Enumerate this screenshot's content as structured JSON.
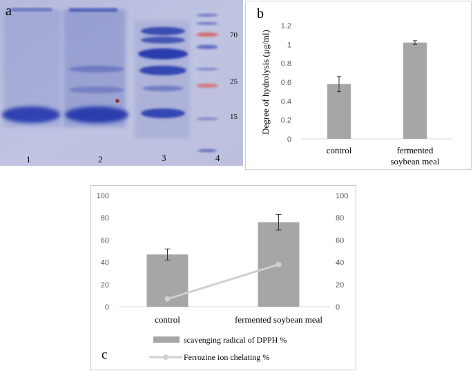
{
  "gel": {
    "panel_label": "a",
    "lane_labels": [
      "1",
      "2",
      "3",
      "4"
    ],
    "marker_labels": [
      "70",
      "25",
      "15"
    ],
    "colors": {
      "background": "#b9bedf",
      "band": "#3a4fb8",
      "marker_red": "#d46a6a"
    }
  },
  "chart_data": [
    {
      "type": "bar",
      "panel_label": "b",
      "categories": [
        "control",
        "fermented\nsoybean meal"
      ],
      "values": [
        0.58,
        1.02
      ],
      "errors": [
        0.08,
        0.02
      ],
      "ylabel": "Degree of hydrolysis (μg/ml)",
      "ylim": [
        0,
        1.2
      ],
      "yticks": [
        "0",
        "0.2",
        "0.4",
        "0.6",
        "0.8",
        "1",
        "1.2"
      ],
      "bar_color": "#a6a6a6",
      "grid": false
    },
    {
      "type": "bar",
      "panel_label": "c",
      "categories": [
        "control",
        "fermented soybean meal"
      ],
      "series": [
        {
          "name": "scavenging  radical of DPPH %",
          "type": "bar",
          "values": [
            47,
            76
          ],
          "errors": [
            5,
            7
          ],
          "color": "#a6a6a6"
        },
        {
          "name": "Ferrozine ion chelating %",
          "type": "line",
          "values": [
            7,
            38
          ],
          "color": "#d0d0d0"
        }
      ],
      "ylim": [
        0,
        100
      ],
      "y2lim": [
        0,
        100
      ],
      "yticks": [
        "0",
        "20",
        "40",
        "60",
        "80",
        "100"
      ],
      "y2ticks": [
        "0",
        "20",
        "40",
        "60",
        "80",
        "100"
      ],
      "legend_position": "bottom",
      "grid": false
    }
  ]
}
